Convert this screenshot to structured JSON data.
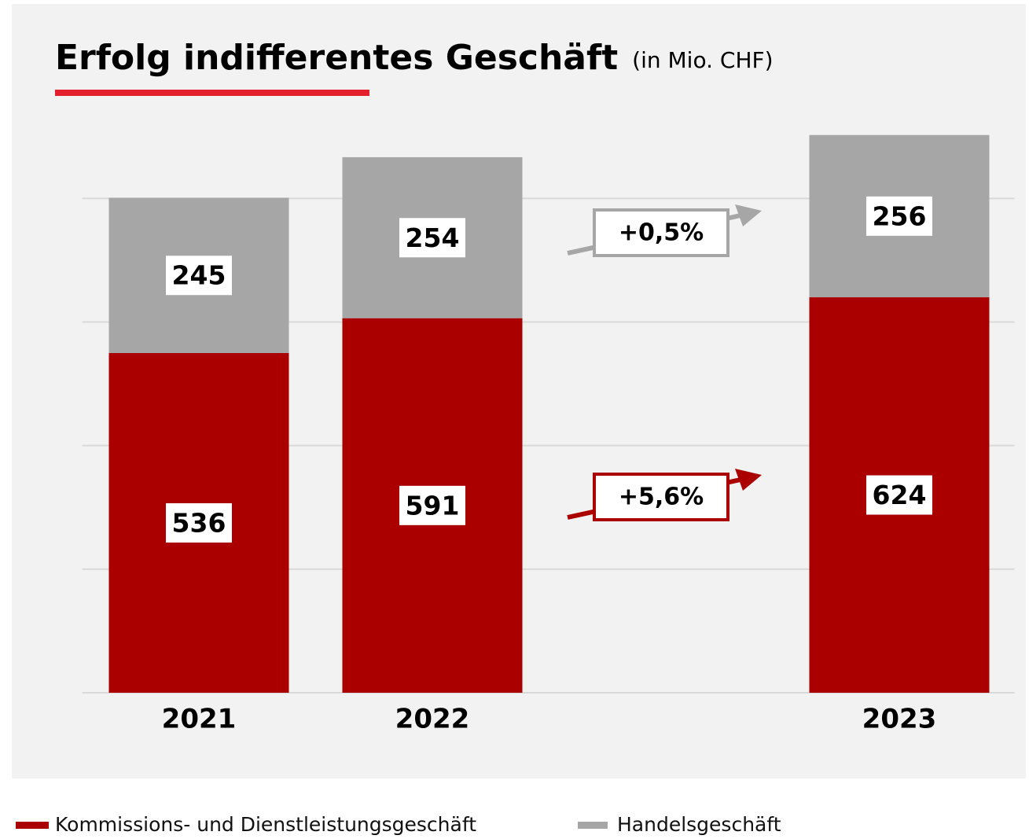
{
  "chart_data": {
    "type": "stacked_bar",
    "title": "Erfolg indifferentes Geschäft",
    "subtitle": "(in Mio. CHF)",
    "categories": [
      "2021",
      "2022",
      null,
      "2023"
    ],
    "series": [
      {
        "name": "Kommissions- und Dienstleistungsgeschäft",
        "color": "#aa0000",
        "values": [
          536,
          591,
          null,
          624
        ]
      },
      {
        "name": "Handelsgeschäft",
        "color": "#a6a6a6",
        "values": [
          245,
          254,
          null,
          256
        ]
      }
    ],
    "annotations": [
      "+0,5%",
      "+5,6%"
    ],
    "ylim": [
      0,
      900
    ],
    "yticks": [
      0,
      195,
      390,
      585,
      780
    ],
    "grid": true
  }
}
